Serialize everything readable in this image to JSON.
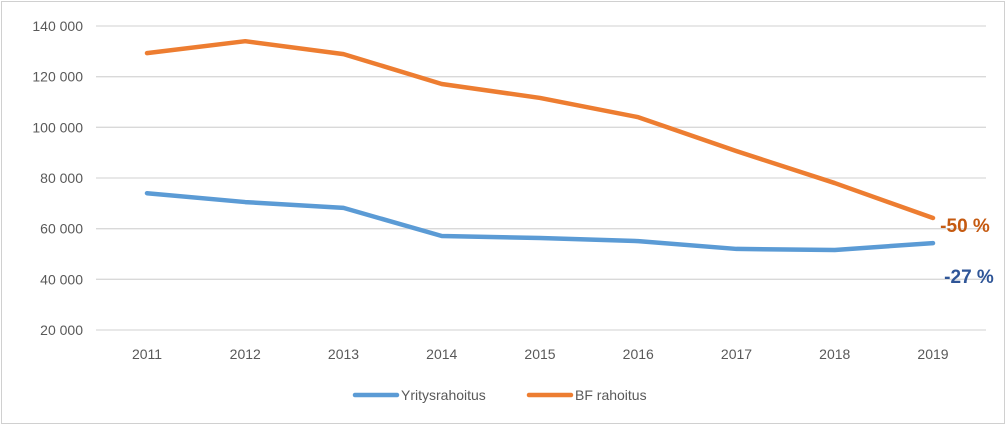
{
  "chart_data": {
    "type": "line",
    "title": "",
    "xlabel": "",
    "ylabel": "",
    "categories": [
      "2011",
      "2012",
      "2013",
      "2014",
      "2015",
      "2016",
      "2017",
      "2018",
      "2019"
    ],
    "ylim": [
      20000,
      140000
    ],
    "yticks": [
      20000,
      40000,
      60000,
      80000,
      100000,
      120000,
      140000
    ],
    "ytick_labels": [
      "20 000",
      "40 000",
      "60 000",
      "80 000",
      "100 000",
      "120 000",
      "140 000"
    ],
    "grid": true,
    "legend_position": "bottom",
    "series": [
      {
        "name": "Yritysrahoitus",
        "color": "#5b9bd5",
        "values": [
          74000,
          70500,
          68200,
          57100,
          56300,
          55100,
          52000,
          51600,
          54300
        ]
      },
      {
        "name": "BF rahoitus",
        "color": "#ed7d31",
        "values": [
          129300,
          134000,
          128900,
          117100,
          111600,
          104000,
          90600,
          78000,
          64200
        ]
      }
    ],
    "annotations": [
      {
        "text": "-50 %",
        "series": "BF rahoitus",
        "color": "#c55a11"
      },
      {
        "text": "-27 %",
        "series": "Yritysrahoitus",
        "color": "#2f5597"
      }
    ]
  }
}
